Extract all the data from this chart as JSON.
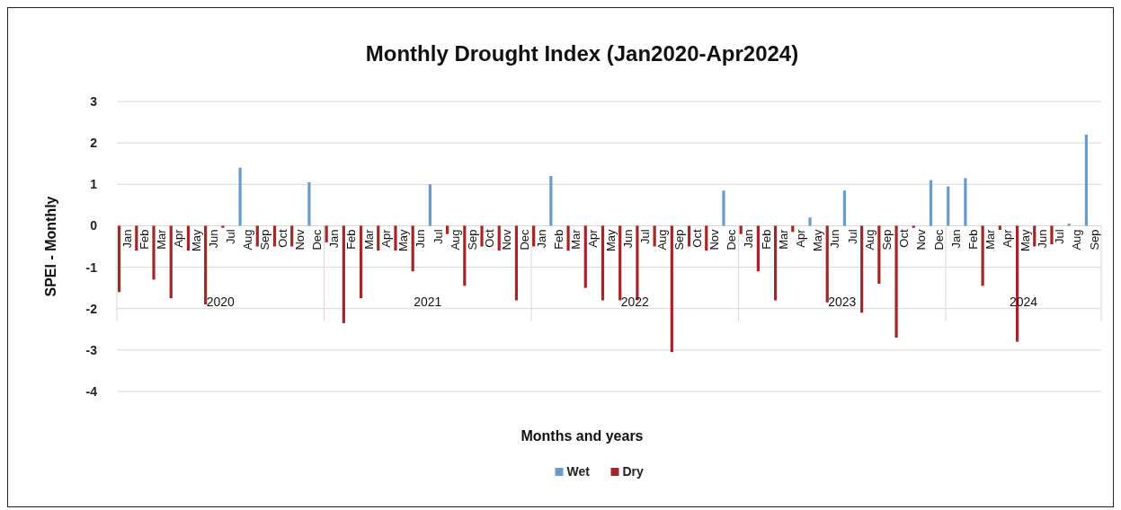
{
  "chart_data": {
    "type": "bar",
    "title": "Monthly Drought Index (Jan2020-Apr2024)",
    "xlabel": "Months and years",
    "ylabel": "SPEI - Monthly",
    "categories": [
      "Jan",
      "Feb",
      "Mar",
      "Apr",
      "May",
      "Jun",
      "Jul",
      "Aug",
      "Sep",
      "Oct",
      "Nov",
      "Dec",
      "Jan",
      "Feb",
      "Mar",
      "Apr",
      "May",
      "Jun",
      "Jul",
      "Aug",
      "Sep",
      "Oct",
      "Nov",
      "Dec",
      "Jan",
      "Feb",
      "Mar",
      "Apr",
      "May",
      "Jun",
      "Jul",
      "Aug",
      "Sep",
      "Oct",
      "Nov",
      "Dec",
      "Jan",
      "Feb",
      "Mar",
      "Apr",
      "May",
      "Jun",
      "Jul",
      "Aug",
      "Sep",
      "Oct",
      "Nov",
      "Dec",
      "Jan",
      "Feb",
      "Mar",
      "Apr",
      "May",
      "Jun",
      "Jul",
      "Aug",
      "Sep"
    ],
    "series": [
      {
        "name": "Wet",
        "color": "#6b9bc8",
        "values": [
          null,
          null,
          null,
          null,
          null,
          null,
          null,
          1.4,
          null,
          null,
          null,
          1.05,
          null,
          null,
          null,
          null,
          null,
          null,
          1.0,
          null,
          null,
          null,
          null,
          null,
          null,
          1.2,
          null,
          null,
          null,
          null,
          null,
          null,
          null,
          null,
          null,
          0.85,
          null,
          null,
          null,
          null,
          0.2,
          null,
          0.85,
          null,
          null,
          null,
          null,
          1.1,
          0.95,
          1.15,
          null,
          null,
          null,
          null,
          null,
          0.05,
          2.2
        ]
      },
      {
        "name": "Dry",
        "color": "#a3262b",
        "values": [
          -1.6,
          -0.6,
          -1.3,
          -1.75,
          -0.6,
          -1.9,
          -0.05,
          null,
          -0.5,
          -0.5,
          -0.5,
          null,
          -0.4,
          -2.35,
          -1.75,
          -0.6,
          -0.6,
          -1.1,
          null,
          -0.2,
          -1.45,
          -0.5,
          -0.6,
          -1.8,
          -0.5,
          null,
          -0.6,
          -1.5,
          -1.8,
          -1.8,
          -1.8,
          -0.5,
          -3.05,
          -0.5,
          -0.6,
          null,
          -0.2,
          -1.1,
          -1.8,
          -0.15,
          null,
          -1.85,
          null,
          -2.1,
          -1.4,
          -2.7,
          -0.05,
          null,
          null,
          null,
          -1.45,
          -0.1,
          -2.8,
          -0.5,
          -0.45,
          null,
          null
        ]
      }
    ],
    "annotations": [
      "2020",
      "2021",
      "2022",
      "2023",
      "2024"
    ],
    "ylim": [
      -4,
      3
    ],
    "yticks": [
      -4,
      -3,
      -2,
      -1,
      0,
      1,
      2,
      3
    ],
    "grid": "y",
    "legend": "bottom"
  }
}
